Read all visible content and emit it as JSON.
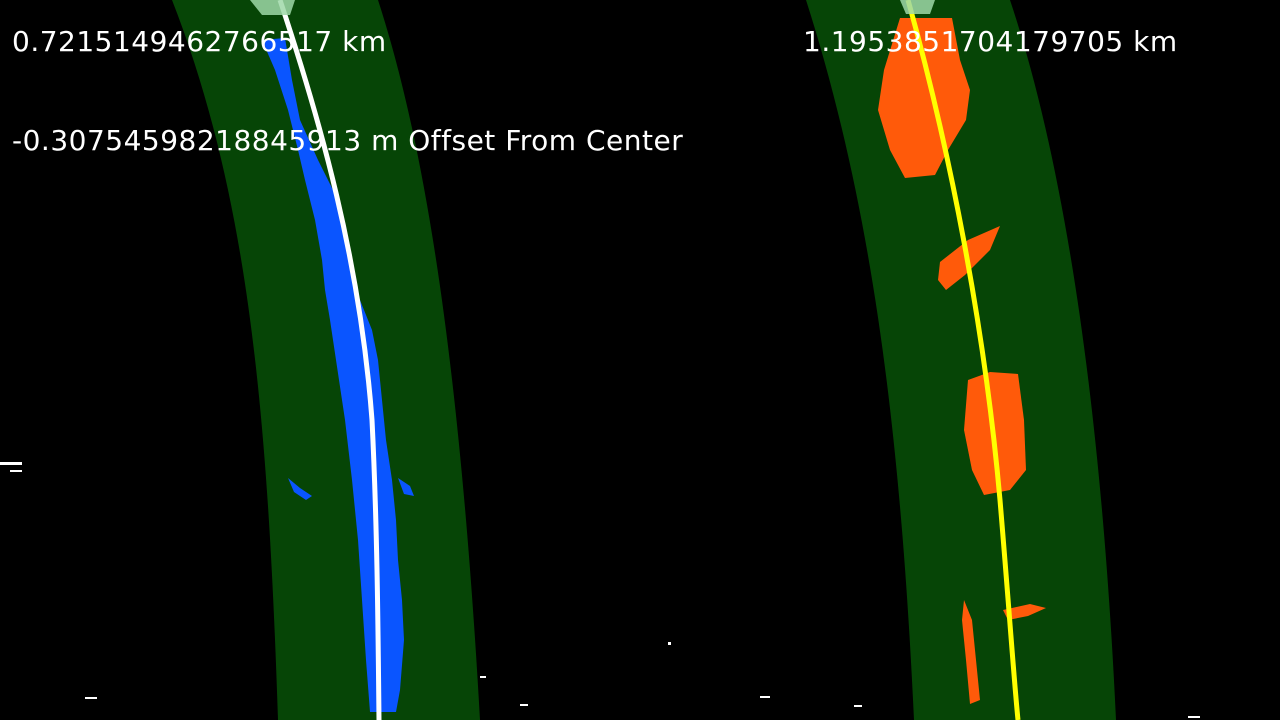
{
  "readouts": {
    "left_curvature": "0.7215149462766517 km",
    "right_curvature": "1.1953851704179705 km",
    "center_offset": "-0.30754598218845913 m Offset From Center"
  },
  "colors": {
    "background": "#000000",
    "search_band": "#064506",
    "left_lane_pixels": "#0a55ff",
    "right_lane_pixels": "#ff5a0a",
    "left_fit_line": "#ffffff",
    "right_fit_line": "#ffff00",
    "text": "#ffffff"
  }
}
